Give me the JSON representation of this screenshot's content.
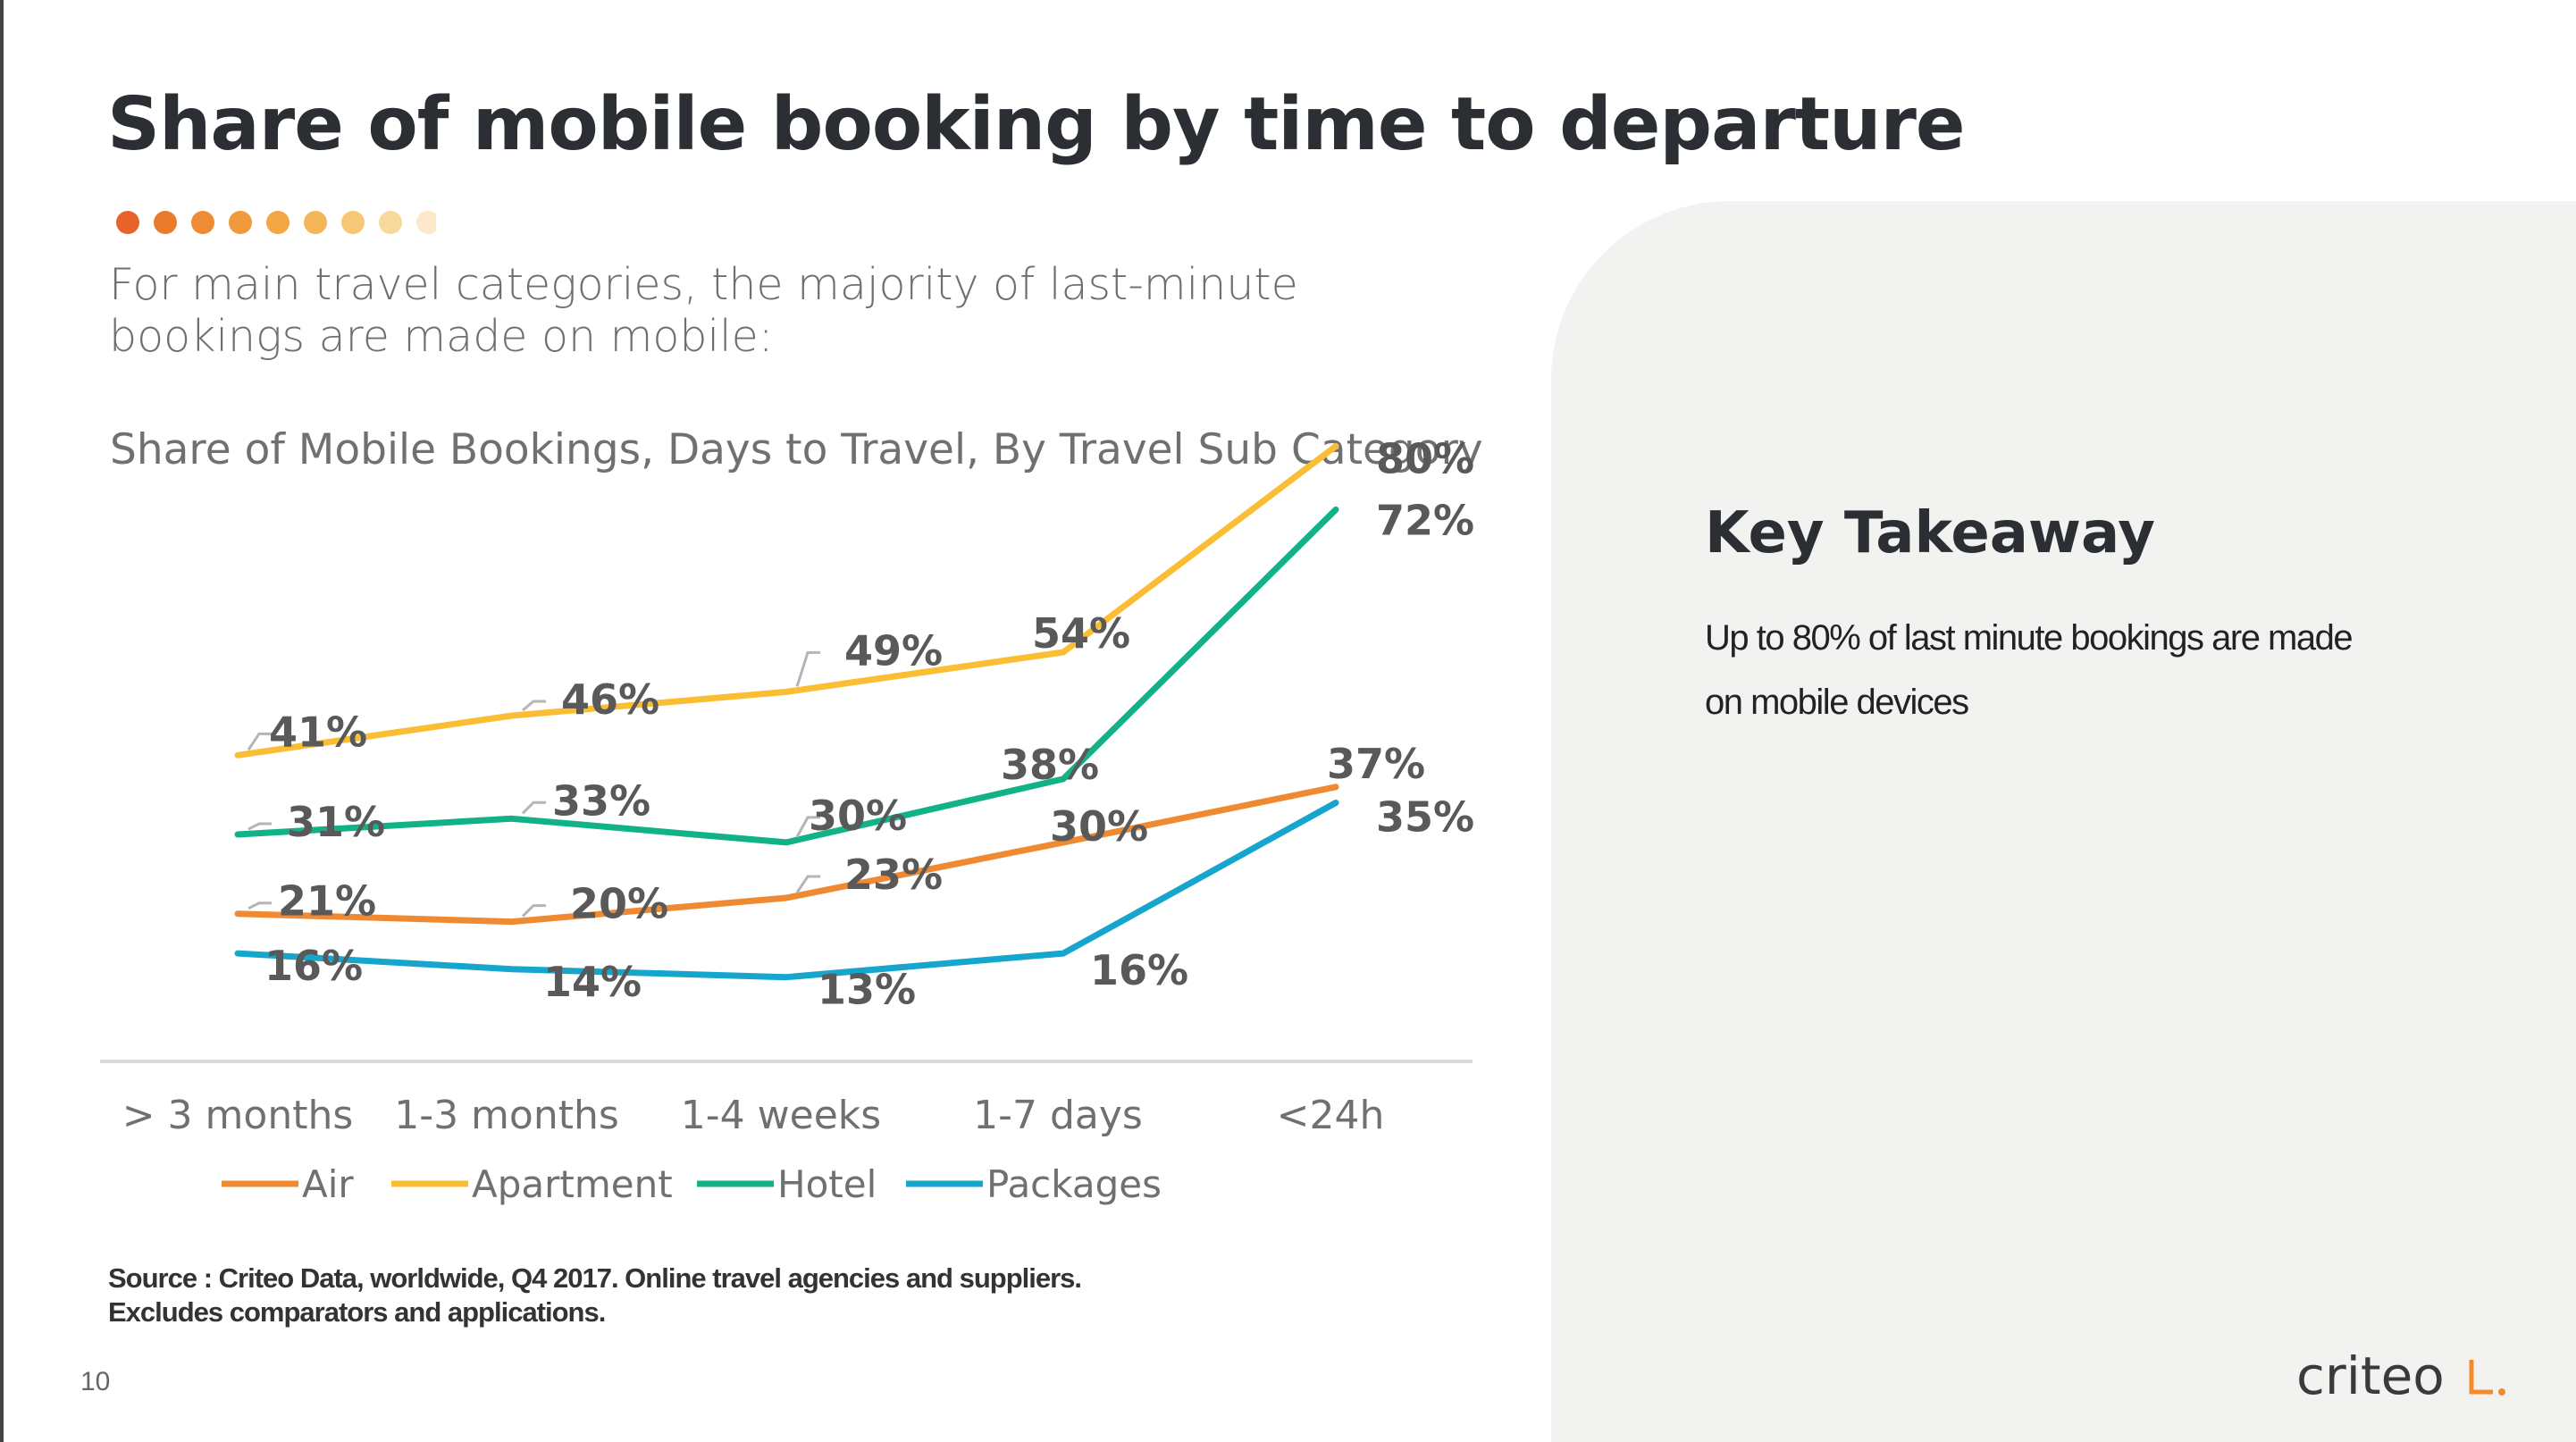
{
  "page": {
    "title": "Share of mobile booking by time to departure",
    "subtitle": "For main travel categories, the majority of last-minute bookings are made on mobile:",
    "page_number": "10",
    "source": "Source : Criteo Data, worldwide, Q4 2017. Online travel agencies and suppliers.",
    "source_line2": "Excludes comparators and applications.",
    "decor_dot_colors": [
      "#e8632a",
      "#ea7a2c",
      "#ee8b33",
      "#f09a3b",
      "#f2a744",
      "#f4b757",
      "#f6c774",
      "#f9d89b",
      "#fce9c9"
    ]
  },
  "takeaway": {
    "title": "Key Takeaway",
    "text_line1": "Up to 80% of last minute bookings are made",
    "text_line2": "on mobile devices"
  },
  "logo": {
    "text": "criteo",
    "accent_color": "#f38a2c"
  },
  "chart_data": {
    "type": "line",
    "title": "Share of Mobile Bookings, Days to Travel, By Travel Sub Category",
    "categories": [
      "> 3 months",
      "1-3 months",
      "1-4 weeks",
      "1-7 days",
      "<24h"
    ],
    "unit": "%",
    "series": [
      {
        "name": "Air",
        "color": "#f08a32",
        "values": [
          21,
          20,
          23,
          30,
          37
        ]
      },
      {
        "name": "Apartment",
        "color": "#fbbd33",
        "values": [
          41,
          46,
          49,
          54,
          80
        ]
      },
      {
        "name": "Hotel",
        "color": "#12b288",
        "values": [
          31,
          33,
          30,
          38,
          72
        ]
      },
      {
        "name": "Packages",
        "color": "#16a5cc",
        "values": [
          16,
          14,
          13,
          16,
          35
        ]
      }
    ],
    "legend": "bottom",
    "grid": false
  }
}
